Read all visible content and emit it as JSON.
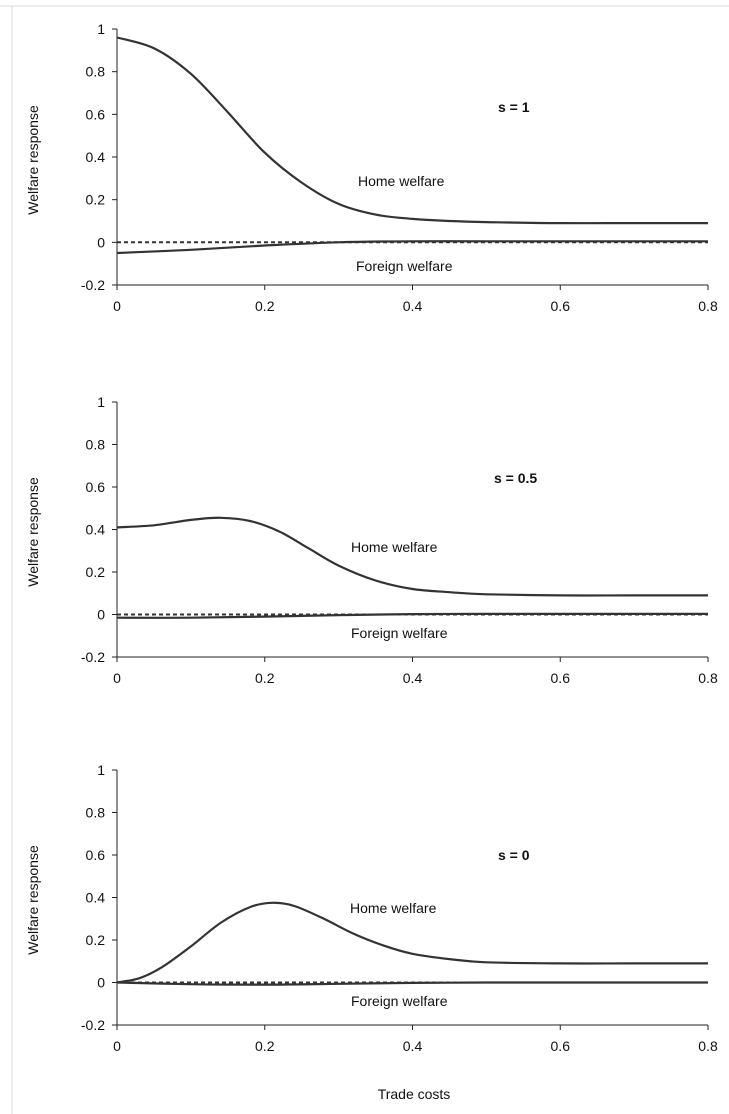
{
  "chart_data": [
    {
      "type": "line",
      "panel": "top",
      "annotation": "s = 1",
      "ylabel": "Welfare response",
      "xlabel": "",
      "xlim": [
        0,
        0.8
      ],
      "ylim": [
        -0.2,
        1
      ],
      "xticks": [
        "0",
        "0.2",
        "0.4",
        "0.6",
        "0.8"
      ],
      "yticks": [
        "-0.2",
        "0",
        "0.2",
        "0.4",
        "0.6",
        "0.8",
        "1"
      ],
      "grid": false,
      "series": [
        {
          "name": "Home welfare",
          "style": "solid",
          "x": [
            0,
            0.05,
            0.1,
            0.15,
            0.2,
            0.25,
            0.3,
            0.35,
            0.4,
            0.45,
            0.5,
            0.6,
            0.7,
            0.8
          ],
          "y": [
            0.96,
            0.91,
            0.79,
            0.61,
            0.42,
            0.28,
            0.18,
            0.13,
            0.11,
            0.1,
            0.095,
            0.09,
            0.09,
            0.09
          ]
        },
        {
          "name": "Foreign welfare",
          "style": "solid",
          "x": [
            0,
            0.1,
            0.2,
            0.3,
            0.4,
            0.5,
            0.6,
            0.7,
            0.8
          ],
          "y": [
            -0.05,
            -0.035,
            -0.015,
            0.0,
            0.005,
            0.005,
            0.005,
            0.005,
            0.005
          ]
        },
        {
          "name": "",
          "style": "dashed",
          "x": [
            0,
            0.8
          ],
          "y": [
            0,
            0
          ]
        }
      ],
      "labels": {
        "home": "Home welfare",
        "foreign": "Foreign welfare"
      }
    },
    {
      "type": "line",
      "panel": "middle",
      "annotation": "s = 0.5",
      "ylabel": "Welfare response",
      "xlabel": "",
      "xlim": [
        0,
        0.8
      ],
      "ylim": [
        -0.2,
        1
      ],
      "xticks": [
        "0",
        "0.2",
        "0.4",
        "0.6",
        "0.8"
      ],
      "yticks": [
        "-0.2",
        "0",
        "0.2",
        "0.4",
        "0.6",
        "0.8",
        "1"
      ],
      "grid": false,
      "series": [
        {
          "name": "Home welfare",
          "style": "solid",
          "x": [
            0,
            0.05,
            0.1,
            0.14,
            0.18,
            0.22,
            0.26,
            0.3,
            0.35,
            0.4,
            0.45,
            0.5,
            0.6,
            0.7,
            0.8
          ],
          "y": [
            0.41,
            0.42,
            0.445,
            0.455,
            0.44,
            0.39,
            0.31,
            0.23,
            0.16,
            0.12,
            0.105,
            0.095,
            0.09,
            0.09,
            0.09
          ]
        },
        {
          "name": "Foreign welfare",
          "style": "solid",
          "x": [
            0,
            0.1,
            0.2,
            0.3,
            0.4,
            0.5,
            0.6,
            0.7,
            0.8
          ],
          "y": [
            -0.015,
            -0.015,
            -0.01,
            -0.003,
            0.002,
            0.003,
            0.003,
            0.003,
            0.003
          ]
        },
        {
          "name": "",
          "style": "dashed",
          "x": [
            0,
            0.8
          ],
          "y": [
            0,
            0
          ]
        }
      ],
      "labels": {
        "home": "Home welfare",
        "foreign": "Foreign welfare"
      }
    },
    {
      "type": "line",
      "panel": "bottom",
      "annotation": "s = 0",
      "ylabel": "Welfare response",
      "xlabel": "Trade costs",
      "xlim": [
        0,
        0.8
      ],
      "ylim": [
        -0.2,
        1
      ],
      "xticks": [
        "0",
        "0.2",
        "0.4",
        "0.6",
        "0.8"
      ],
      "yticks": [
        "-0.2",
        "0",
        "0.2",
        "0.4",
        "0.6",
        "0.8",
        "1"
      ],
      "grid": false,
      "series": [
        {
          "name": "Home welfare",
          "style": "solid",
          "x": [
            0,
            0.03,
            0.06,
            0.1,
            0.14,
            0.18,
            0.21,
            0.24,
            0.28,
            0.32,
            0.36,
            0.4,
            0.45,
            0.5,
            0.6,
            0.7,
            0.8
          ],
          "y": [
            0.0,
            0.02,
            0.07,
            0.17,
            0.28,
            0.355,
            0.375,
            0.36,
            0.3,
            0.23,
            0.175,
            0.135,
            0.11,
            0.095,
            0.09,
            0.09,
            0.09
          ]
        },
        {
          "name": "Foreign welfare",
          "style": "solid",
          "x": [
            0,
            0.1,
            0.2,
            0.3,
            0.4,
            0.5,
            0.6,
            0.7,
            0.8
          ],
          "y": [
            0.0,
            -0.008,
            -0.01,
            -0.006,
            -0.002,
            0.0,
            0.0,
            0.0,
            0.0
          ]
        },
        {
          "name": "",
          "style": "dashed",
          "x": [
            0,
            0.8
          ],
          "y": [
            0,
            0
          ]
        }
      ],
      "labels": {
        "home": "Home welfare",
        "foreign": "Foreign welfare"
      }
    }
  ]
}
